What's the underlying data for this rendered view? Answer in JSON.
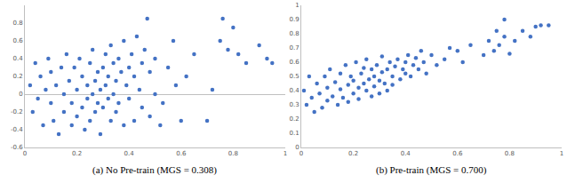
{
  "chart_data": [
    {
      "type": "scatter",
      "title": "(a) No Pre-train (MGS = 0.308)",
      "color": "#4472c4",
      "grid": false,
      "xlim": [
        0,
        1
      ],
      "xticks": [
        0,
        0.2,
        0.4,
        0.6,
        0.8,
        1
      ],
      "ylim": [
        -0.6,
        1
      ],
      "yticks": [
        -0.6,
        -0.4,
        -0.2,
        0,
        0.2,
        0.4,
        0.6,
        0.8
      ],
      "x": [
        0.02,
        0.03,
        0.04,
        0.05,
        0.06,
        0.07,
        0.08,
        0.09,
        0.1,
        0.1,
        0.11,
        0.12,
        0.13,
        0.14,
        0.15,
        0.15,
        0.16,
        0.17,
        0.18,
        0.18,
        0.19,
        0.2,
        0.2,
        0.21,
        0.22,
        0.22,
        0.23,
        0.24,
        0.24,
        0.25,
        0.25,
        0.26,
        0.26,
        0.27,
        0.27,
        0.28,
        0.28,
        0.29,
        0.29,
        0.3,
        0.3,
        0.31,
        0.31,
        0.32,
        0.32,
        0.33,
        0.33,
        0.34,
        0.34,
        0.35,
        0.35,
        0.36,
        0.36,
        0.37,
        0.38,
        0.38,
        0.39,
        0.4,
        0.4,
        0.41,
        0.42,
        0.42,
        0.43,
        0.44,
        0.45,
        0.45,
        0.46,
        0.47,
        0.48,
        0.48,
        0.5,
        0.5,
        0.52,
        0.53,
        0.55,
        0.57,
        0.58,
        0.6,
        0.62,
        0.65,
        0.7,
        0.72,
        0.75,
        0.76,
        0.78,
        0.8,
        0.82,
        0.85,
        0.9,
        0.93,
        0.95
      ],
      "values": [
        0.1,
        -0.2,
        0.35,
        -0.05,
        0.2,
        -0.35,
        0.05,
        0.4,
        -0.1,
        0.25,
        -0.3,
        0.1,
        -0.45,
        0.3,
        0.0,
        -0.2,
        0.45,
        0.15,
        -0.1,
        -0.35,
        0.3,
        0.05,
        -0.25,
        0.4,
        -0.15,
        0.2,
        -0.4,
        0.1,
        -0.05,
        0.35,
        -0.3,
        0.0,
        0.5,
        -0.2,
        0.15,
        0.25,
        -0.1,
        0.05,
        -0.45,
        0.3,
        -0.15,
        0.1,
        0.45,
        -0.05,
        0.2,
        -0.3,
        0.55,
        0.0,
        0.35,
        -0.2,
        0.15,
        0.4,
        -0.1,
        0.25,
        0.6,
        -0.35,
        0.1,
        0.3,
        -0.05,
        0.45,
        0.2,
        -0.3,
        0.65,
        0.05,
        0.35,
        -0.15,
        0.5,
        0.85,
        0.25,
        -0.25,
        0.4,
        0.0,
        -0.35,
        -0.1,
        0.3,
        0.6,
        0.1,
        -0.3,
        0.2,
        0.45,
        -0.3,
        0.05,
        0.6,
        0.85,
        0.5,
        0.75,
        0.45,
        0.35,
        0.55,
        0.4,
        0.35
      ]
    },
    {
      "type": "scatter",
      "title": "(b) Pre-train (MGS = 0.700)",
      "color": "#4472c4",
      "grid": false,
      "xlim": [
        0,
        1
      ],
      "xticks": [
        0,
        0.2,
        0.4,
        0.6,
        0.8,
        1
      ],
      "ylim": [
        0,
        1
      ],
      "yticks": [
        0,
        0.1,
        0.2,
        0.3,
        0.4,
        0.5,
        0.6,
        0.7,
        0.8,
        0.9,
        1
      ],
      "x": [
        0.01,
        0.02,
        0.03,
        0.04,
        0.05,
        0.06,
        0.07,
        0.08,
        0.09,
        0.1,
        0.1,
        0.11,
        0.12,
        0.13,
        0.14,
        0.15,
        0.15,
        0.16,
        0.17,
        0.18,
        0.18,
        0.19,
        0.2,
        0.2,
        0.21,
        0.22,
        0.22,
        0.23,
        0.24,
        0.24,
        0.25,
        0.25,
        0.26,
        0.27,
        0.27,
        0.28,
        0.28,
        0.29,
        0.3,
        0.3,
        0.31,
        0.31,
        0.32,
        0.33,
        0.33,
        0.34,
        0.35,
        0.35,
        0.36,
        0.37,
        0.38,
        0.39,
        0.4,
        0.4,
        0.41,
        0.42,
        0.43,
        0.44,
        0.45,
        0.46,
        0.47,
        0.48,
        0.5,
        0.52,
        0.55,
        0.57,
        0.6,
        0.62,
        0.65,
        0.7,
        0.72,
        0.74,
        0.75,
        0.76,
        0.78,
        0.78,
        0.8,
        0.82,
        0.85,
        0.88,
        0.9,
        0.92,
        0.95
      ],
      "values": [
        0.4,
        0.3,
        0.5,
        0.35,
        0.25,
        0.45,
        0.38,
        0.28,
        0.5,
        0.42,
        0.33,
        0.55,
        0.36,
        0.46,
        0.3,
        0.52,
        0.41,
        0.35,
        0.58,
        0.44,
        0.32,
        0.5,
        0.38,
        0.47,
        0.6,
        0.42,
        0.34,
        0.52,
        0.45,
        0.56,
        0.4,
        0.62,
        0.48,
        0.36,
        0.55,
        0.5,
        0.43,
        0.58,
        0.47,
        0.38,
        0.53,
        0.64,
        0.45,
        0.55,
        0.4,
        0.6,
        0.5,
        0.44,
        0.57,
        0.62,
        0.48,
        0.55,
        0.6,
        0.52,
        0.65,
        0.5,
        0.58,
        0.63,
        0.55,
        0.68,
        0.6,
        0.52,
        0.65,
        0.58,
        0.62,
        0.7,
        0.68,
        0.6,
        0.72,
        0.65,
        0.75,
        0.68,
        0.82,
        0.72,
        0.9,
        0.78,
        0.66,
        0.75,
        0.82,
        0.78,
        0.85,
        0.86,
        0.86
      ]
    }
  ]
}
